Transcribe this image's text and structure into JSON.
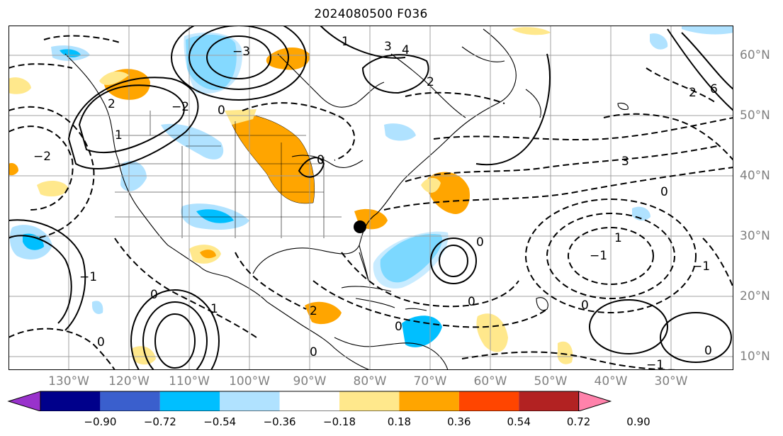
{
  "title": "2024080500 F036",
  "longitude_labels": [
    "130°W",
    "120°W",
    "110°W",
    "100°W",
    "90°W",
    "80°W",
    "70°W",
    "60°W",
    "50°W",
    "40°W",
    "30°W"
  ],
  "latitude_labels": [
    "60°N",
    "50°N",
    "40°N",
    "30°N",
    "20°N",
    "10°N"
  ],
  "colorbar": {
    "tick_labels": [
      "−0.90",
      "−0.72",
      "−0.54",
      "−0.36",
      "−0.18",
      "0.18",
      "0.36",
      "0.54",
      "0.72",
      "0.90"
    ],
    "colors": [
      "#9932cc",
      "#00008b",
      "#3a5fcd",
      "#00bfff",
      "#b0e2ff",
      "#ffffff",
      "#ffe88c",
      "#ffa500",
      "#ff4500",
      "#b22222",
      "#ff82ab"
    ]
  },
  "map": {
    "region": "North America and western Atlantic",
    "lon_range": [
      -145,
      -25
    ],
    "lat_range": [
      8,
      65
    ],
    "marker": {
      "lon": -80.2,
      "lat": 31.8
    },
    "contour_labels": [
      "0",
      "1",
      "2",
      "3",
      "−1",
      "−2",
      "−3",
      "4",
      "6"
    ],
    "colors": {
      "positive": "#ffa500",
      "positive_light": "#ffe88c",
      "negative": "#00bfff",
      "negative_light": "#b0e2ff",
      "grid": "#a0a0a0"
    }
  }
}
